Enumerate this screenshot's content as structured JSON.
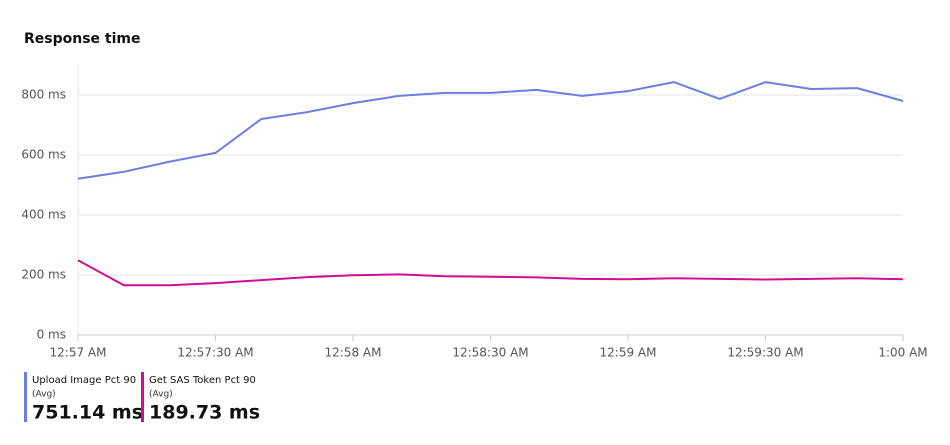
{
  "chart_data": {
    "type": "line",
    "title": "Response time",
    "categories": [
      "12:57 AM",
      null,
      null,
      "12:57:30 AM",
      null,
      null,
      "12:58 AM",
      null,
      null,
      "12:58:30 AM",
      null,
      null,
      "12:59 AM",
      null,
      null,
      "12:59:30 AM",
      null,
      null,
      "1:00 AM"
    ],
    "series": [
      {
        "name": "Upload Image Pct 90",
        "color": "#6b7fe3",
        "aggregation": "(Avg)",
        "summary": {
          "value": 751.14,
          "label": "751.14 ms"
        },
        "values": [
          521,
          544,
          578,
          607,
          720,
          743,
          773,
          797,
          807,
          807,
          817,
          797,
          813,
          843,
          787,
          843,
          820,
          823,
          780
        ]
      },
      {
        "name": "Get SAS Token Pct 90",
        "color": "#d10d96",
        "aggregation": "(Avg)",
        "summary": {
          "value": 189.73,
          "label": "189.73 ms"
        },
        "values": [
          249,
          166,
          166,
          173,
          183,
          193,
          199,
          202,
          196,
          194,
          192,
          187,
          186,
          189,
          187,
          185,
          187,
          189,
          186
        ]
      }
    ],
    "ylim": [
      0,
      900
    ],
    "yticks": [
      {
        "value": 0,
        "label": "0 ms"
      },
      {
        "value": 200,
        "label": "200 ms"
      },
      {
        "value": 400,
        "label": "400 ms"
      },
      {
        "value": 600,
        "label": "600 ms"
      },
      {
        "value": 800,
        "label": "800 ms"
      }
    ],
    "grid": true
  }
}
